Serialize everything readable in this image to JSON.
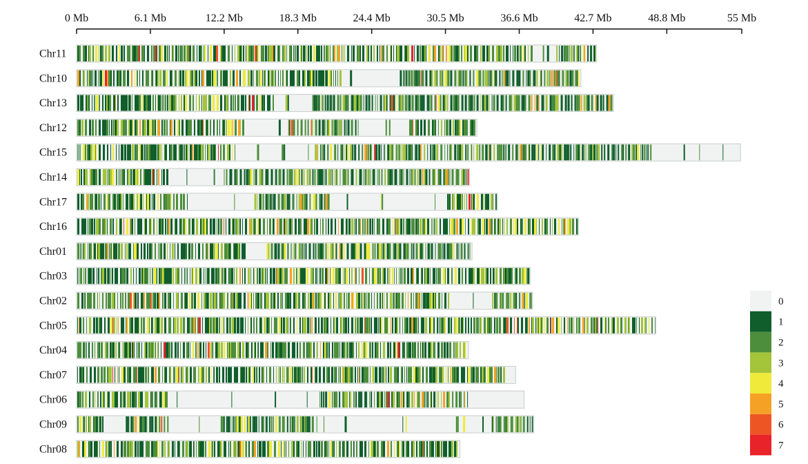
{
  "chart_data": {
    "type": "heatmap",
    "title": "",
    "xlabel": "",
    "ylabel": "",
    "x_unit": "Mb",
    "xlim": [
      0,
      55
    ],
    "x_ticks": [
      "0 Mb",
      "6.1 Mb",
      "12.2 Mb",
      "18.3 Mb",
      "24.4 Mb",
      "30.5 Mb",
      "36.6 Mb",
      "42.7 Mb",
      "48.8 Mb",
      "55 Mb"
    ],
    "x_tick_values": [
      0,
      6.1,
      12.2,
      18.3,
      24.4,
      30.5,
      36.6,
      42.7,
      48.8,
      55
    ],
    "legend": {
      "placement": "bottom-right",
      "levels": [
        {
          "label": "0",
          "color": "#f0f3f2"
        },
        {
          "label": "1",
          "color": "#0f5e2c"
        },
        {
          "label": "2",
          "color": "#4d8e3c"
        },
        {
          "label": "3",
          "color": "#a4c43a"
        },
        {
          "label": "4",
          "color": "#f0ea3a"
        },
        {
          "label": "5",
          "color": "#f5a126"
        },
        {
          "label": "6",
          "color": "#ee5524"
        },
        {
          "label": "7",
          "color": "#e8232a"
        }
      ]
    },
    "series": [
      {
        "name": "Chr11",
        "length": 43.0
      },
      {
        "name": "Chr10",
        "length": 41.7
      },
      {
        "name": "Chr13",
        "length": 44.4
      },
      {
        "name": "Chr12",
        "length": 33.1
      },
      {
        "name": "Chr15",
        "length": 54.9
      },
      {
        "name": "Chr14",
        "length": 32.5
      },
      {
        "name": "Chr17",
        "length": 34.8
      },
      {
        "name": "Chr16",
        "length": 41.5
      },
      {
        "name": "Chr01",
        "length": 32.7
      },
      {
        "name": "Chr03",
        "length": 37.5
      },
      {
        "name": "Chr02",
        "length": 37.7
      },
      {
        "name": "Chr05",
        "length": 47.9
      },
      {
        "name": "Chr04",
        "length": 32.4
      },
      {
        "name": "Chr07",
        "length": 36.3
      },
      {
        "name": "Chr06",
        "length": 37.0
      },
      {
        "name": "Chr09",
        "length": 37.8
      },
      {
        "name": "Chr08",
        "length": 31.7
      }
    ]
  }
}
